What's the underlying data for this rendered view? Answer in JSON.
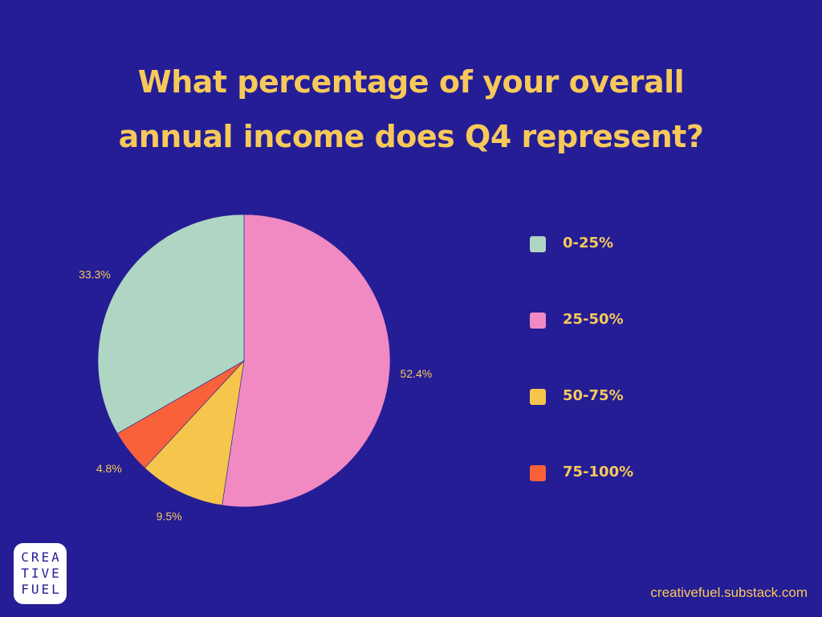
{
  "chart_data": {
    "type": "pie",
    "title_lines": [
      "What percentage of your overall",
      "annual income does Q4 represent?"
    ],
    "categories": [
      "0-25%",
      "25-50%",
      "50-75%",
      "75-100%"
    ],
    "values": [
      33.3,
      52.4,
      9.5,
      4.8
    ],
    "value_labels": [
      "33.3%",
      "52.4%",
      "9.5%",
      "4.8%"
    ],
    "colors": [
      "#afd6c2",
      "#f18ac2",
      "#f5c54c",
      "#f9613b"
    ],
    "start_category": "25-50%",
    "direction": "clockwise from top",
    "legend_position": "right"
  },
  "colors": {
    "background": "#251d96",
    "accent_text": "#f7c95a",
    "label_text": "#f7c95a",
    "slice_border": "#251d96"
  },
  "logo": {
    "lines": [
      "CREA",
      "TIVE",
      "FUEL"
    ]
  },
  "footer": {
    "url": "creativefuel.substack.com"
  }
}
